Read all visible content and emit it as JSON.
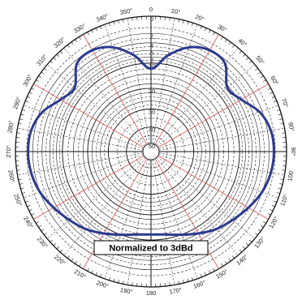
{
  "chart_data": {
    "type": "line",
    "projection": "polar",
    "angle_unit": "degrees",
    "angle_direction": "clockwise",
    "zero_at": "top",
    "angle_ticks": [
      "0",
      "10°",
      "20°",
      "30°",
      "40°",
      "50°",
      "60°",
      "70°",
      "80°",
      "90°",
      "100",
      "110°",
      "120°",
      "130°",
      "140°",
      "150°",
      "160°",
      "170°",
      "180",
      "190°",
      "200°",
      "210°",
      "220°",
      "230°",
      "240°",
      "250°",
      "260°",
      "270°",
      "280°",
      "290°",
      "300°",
      "310°",
      "320°",
      "330°",
      "340°",
      "350°"
    ],
    "radial_scale": "decibel",
    "radial_range_db": [
      -50,
      0
    ],
    "radial_ticks": [
      "0",
      "2",
      "4",
      "6",
      "8",
      "10",
      "20",
      "30",
      "40",
      "50"
    ],
    "grid": true,
    "annotation": "Normalized to 3dBd",
    "line_color": "#2b3a8f",
    "radial_grid_color": "#e05050",
    "series": [
      {
        "angles": [
          0,
          10,
          20,
          30,
          40,
          50,
          60,
          70,
          80,
          90,
          100,
          110,
          120,
          130,
          140,
          150,
          160,
          170,
          180,
          190,
          200,
          210,
          220,
          230,
          240,
          250,
          260,
          270,
          280,
          290,
          300,
          310,
          320,
          330,
          340,
          350,
          360
        ],
        "values_db": [
          -12,
          -7,
          -3.5,
          -2.2,
          -2.6,
          -6.5,
          -5.2,
          -2.5,
          -1.4,
          -1.2,
          -1.4,
          -2.0,
          -3.2,
          -4.6,
          -6.0,
          -8.0,
          -10.0,
          -11.5,
          -12,
          -11.5,
          -10.0,
          -8.0,
          -6.0,
          -4.6,
          -3.2,
          -2.0,
          -1.4,
          -1.2,
          -1.4,
          -2.5,
          -5.2,
          -6.5,
          -2.6,
          -2.2,
          -3.5,
          -7,
          -12
        ]
      }
    ]
  }
}
